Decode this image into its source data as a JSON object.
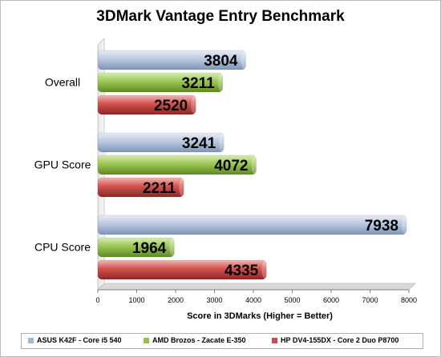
{
  "chart_data": {
    "type": "bar",
    "orientation": "horizontal",
    "title": "3DMark Vantage Entry Benchmark",
    "xlabel": "Score in 3DMarks (Higher = Better)",
    "ylabel": "",
    "categories": [
      "Overall",
      "GPU Score",
      "CPU Score"
    ],
    "xlim": [
      0,
      8000
    ],
    "xticks": [
      0,
      1000,
      2000,
      3000,
      4000,
      5000,
      6000,
      7000,
      8000
    ],
    "grid": false,
    "legend_position": "bottom",
    "series": [
      {
        "name": "ASUS K42F - Core i5 540",
        "color": "#a3b6d3",
        "values": [
          3804,
          3241,
          7938
        ]
      },
      {
        "name": "AMD Brozos - Zacate E-350",
        "color": "#96c04c",
        "values": [
          3211,
          4072,
          1964
        ]
      },
      {
        "name": "HP DV4-155DX - Core 2 Duo P8700",
        "color": "#cc4b48",
        "values": [
          2520,
          2211,
          4335
        ]
      }
    ]
  }
}
